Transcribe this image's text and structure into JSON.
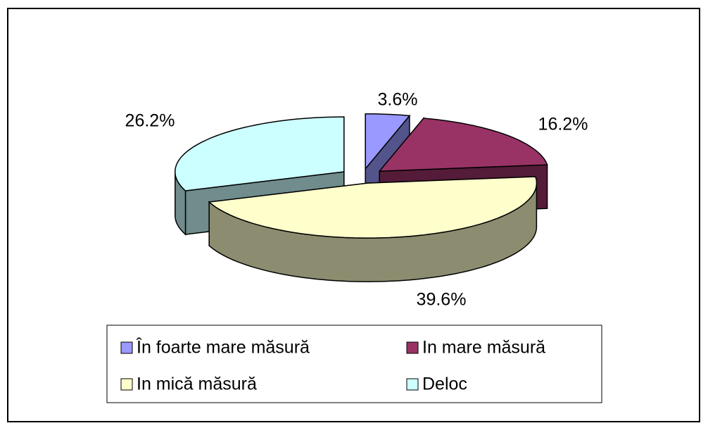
{
  "chart_data": {
    "type": "pie",
    "categories": [
      "În foarte mare măsură",
      "In mare măsură",
      "In mică măsură",
      "Deloc"
    ],
    "values": [
      3.6,
      16.2,
      39.6,
      26.2
    ],
    "value_labels": [
      "3.6%",
      "16.2%",
      "39.6%",
      "26.2%"
    ],
    "colors": [
      "#9999ff",
      "#993366",
      "#ffffcc",
      "#ccffff"
    ],
    "legend": "bottom"
  }
}
